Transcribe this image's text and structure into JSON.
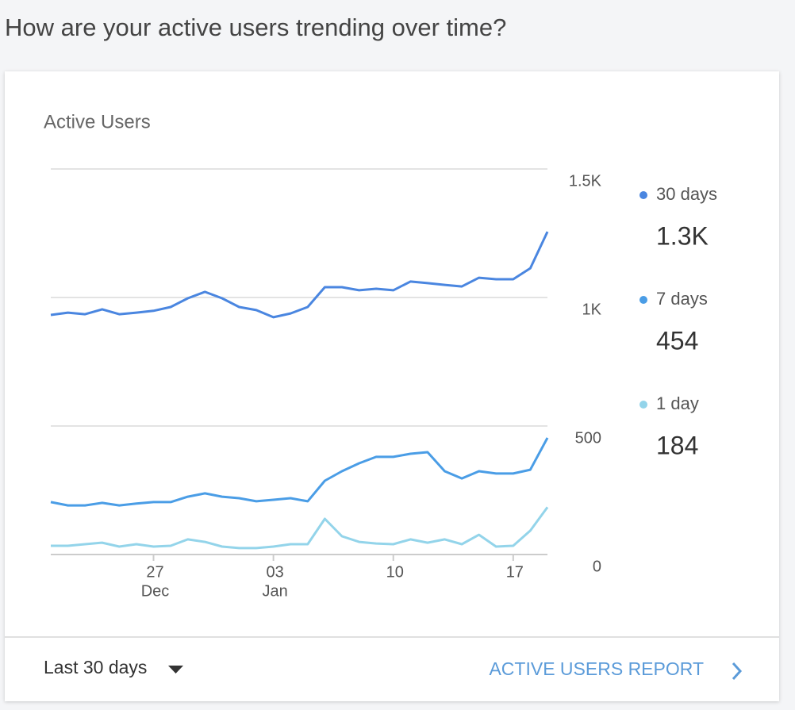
{
  "header": {
    "title": "How are your active users trending over time?"
  },
  "chart_data": {
    "type": "line",
    "title": "Active Users",
    "categories": [
      "",
      "",
      "",
      "",
      "",
      "",
      "27",
      "",
      "",
      "",
      "",
      "",
      "",
      "03",
      "",
      "",
      "",
      "",
      "",
      "",
      "10",
      "",
      "",
      "",
      "",
      "",
      "",
      "17",
      "",
      ""
    ],
    "category_months": [
      null,
      null,
      null,
      null,
      null,
      null,
      "Dec",
      null,
      null,
      null,
      null,
      null,
      null,
      "Jan",
      null,
      null,
      null,
      null,
      null,
      null,
      null,
      null,
      null,
      null,
      null,
      null,
      null,
      null,
      null,
      null
    ],
    "series": [
      {
        "name": "30 days",
        "color": "#4a86e0",
        "summary": {
          "value": 1256,
          "label": "1.3K"
        },
        "values": [
          932,
          941,
          935,
          954,
          935,
          941,
          948,
          963,
          997,
          1022,
          997,
          963,
          951,
          923,
          938,
          963,
          1040,
          1040,
          1028,
          1034,
          1028,
          1062,
          1056,
          1049,
          1043,
          1077,
          1071,
          1071,
          1114,
          1256
        ]
      },
      {
        "name": "7 days",
        "color": "#4a9de6",
        "summary": 454,
        "values": [
          204,
          191,
          191,
          201,
          191,
          198,
          204,
          204,
          225,
          238,
          225,
          219,
          207,
          213,
          219,
          207,
          287,
          324,
          355,
          380,
          380,
          392,
          398,
          324,
          296,
          324,
          315,
          315,
          330,
          454
        ]
      },
      {
        "name": "1 day",
        "color": "#93d4ea",
        "summary": 184,
        "values": [
          34,
          34,
          40,
          46,
          31,
          40,
          31,
          34,
          59,
          49,
          31,
          25,
          25,
          31,
          40,
          40,
          139,
          71,
          49,
          43,
          40,
          59,
          46,
          59,
          40,
          77,
          31,
          34,
          93,
          184
        ]
      }
    ],
    "ylim": [
      0,
      1500
    ],
    "yticks": [
      0,
      500,
      {
        "value": 1000,
        "label": "1K"
      },
      {
        "value": 1500,
        "label": "1.5K"
      }
    ],
    "grid": true
  },
  "footer": {
    "range": "Last 30 days",
    "link": "ACTIVE USERS REPORT"
  }
}
